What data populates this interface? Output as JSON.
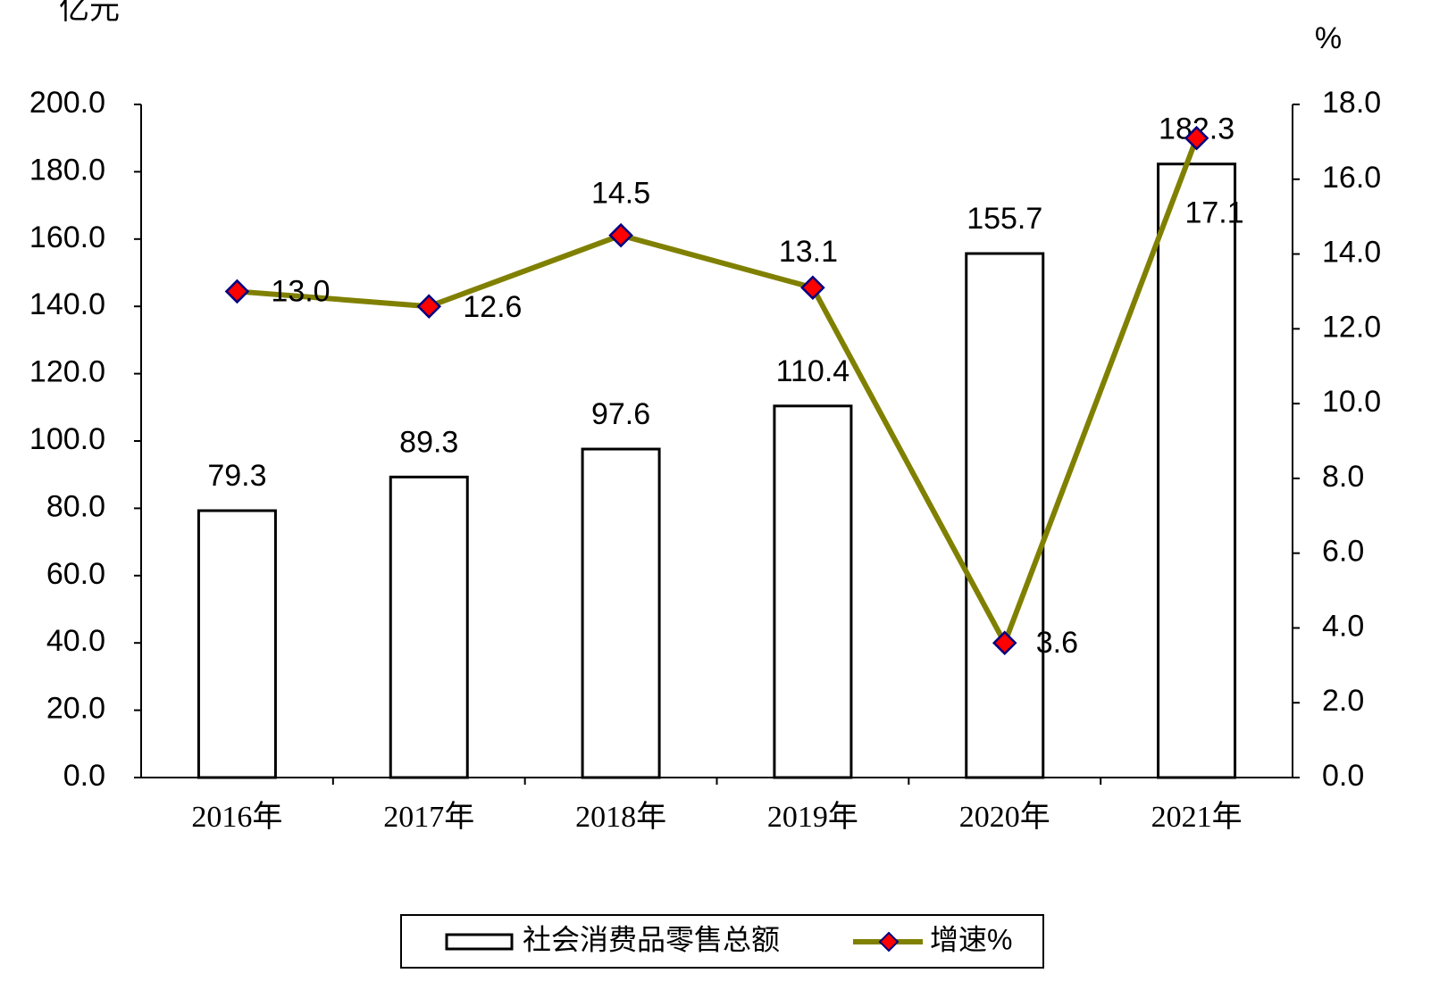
{
  "chart_data": {
    "type": "bar",
    "y_label": "亿元",
    "y2_label": "%",
    "categories": [
      "2016年",
      "2017年",
      "2018年",
      "2019年",
      "2020年",
      "2021年"
    ],
    "series": [
      {
        "name": "社会消费品零售总额",
        "type": "bar",
        "color": "#ffffff",
        "edgecolor": "#000000",
        "values": [
          79.3,
          89.3,
          97.6,
          110.4,
          155.7,
          182.3
        ]
      },
      {
        "name": "增速%",
        "type": "line",
        "axis": "y2",
        "color": "#808000",
        "marker_color": "#ff0000",
        "marker_edgecolor": "#000080",
        "values": [
          13.0,
          12.6,
          14.5,
          13.1,
          3.6,
          17.1
        ],
        "value_labels": [
          "13.0",
          "12.6",
          "14.5",
          "13.1",
          "3.6",
          "17.1"
        ]
      }
    ],
    "bar_value_labels": [
      "79.3",
      "89.3",
      "97.6",
      "110.4",
      "155.7",
      "182.3"
    ],
    "ylim": [
      0,
      200
    ],
    "yticks": [
      {
        "value": 0,
        "label": "0.0"
      },
      {
        "value": 20,
        "label": "20.0"
      },
      {
        "value": 40,
        "label": "40.0"
      },
      {
        "value": 60,
        "label": "60.0"
      },
      {
        "value": 80,
        "label": "80.0"
      },
      {
        "value": 100,
        "label": "100.0"
      },
      {
        "value": 120,
        "label": "120.0"
      },
      {
        "value": 140,
        "label": "140.0"
      },
      {
        "value": 160,
        "label": "160.0"
      },
      {
        "value": 180,
        "label": "180.0"
      },
      {
        "value": 200,
        "label": "200.0"
      }
    ],
    "y2lim": [
      0,
      18
    ],
    "y2ticks": [
      {
        "value": 0,
        "label": "0.0"
      },
      {
        "value": 2,
        "label": "2.0"
      },
      {
        "value": 4,
        "label": "4.0"
      },
      {
        "value": 6,
        "label": "6.0"
      },
      {
        "value": 8,
        "label": "8.0"
      },
      {
        "value": 10,
        "label": "10.0"
      },
      {
        "value": 12,
        "label": "12.0"
      },
      {
        "value": 14,
        "label": "14.0"
      },
      {
        "value": 16,
        "label": "16.0"
      },
      {
        "value": 18,
        "label": "18.0"
      }
    ],
    "grid": false,
    "legend": "bottom"
  }
}
